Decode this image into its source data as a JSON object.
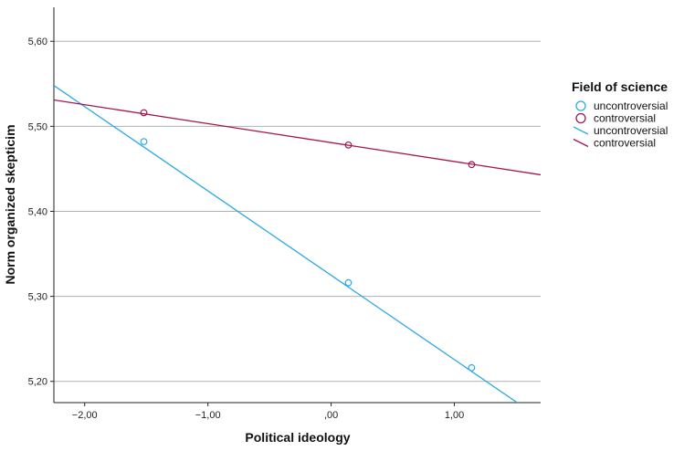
{
  "chart_data": {
    "type": "scatter",
    "xlabel": "Political ideology",
    "ylabel": "Norm organized skepticim",
    "xlim": [
      -2.25,
      1.7
    ],
    "ylim": [
      5.175,
      5.64
    ],
    "x_ticks": [
      -2.0,
      -1.0,
      0.0,
      1.0
    ],
    "x_tick_labels": [
      "−2,00",
      "−1,00",
      ",00",
      "1,00"
    ],
    "y_ticks": [
      5.2,
      5.3,
      5.4,
      5.5,
      5.6
    ],
    "y_tick_labels": [
      "5,20",
      "5,30",
      "5,40",
      "5,50",
      "5,60"
    ],
    "grid": "horizontal",
    "legend": {
      "title": "Field of science",
      "position": "right",
      "entries": [
        {
          "label": "uncontroversial",
          "kind": "marker",
          "color": "#29abe2"
        },
        {
          "label": "controversial",
          "kind": "marker",
          "color": "#a4164f"
        },
        {
          "label": "uncontroversial",
          "kind": "line",
          "color": "#29abe2"
        },
        {
          "label": "controversial",
          "kind": "line",
          "color": "#a4164f"
        }
      ]
    },
    "series": [
      {
        "name": "uncontroversial",
        "color": "#29abe2",
        "points": [
          {
            "x": -1.52,
            "y": 5.482
          },
          {
            "x": 0.14,
            "y": 5.316
          },
          {
            "x": 1.14,
            "y": 5.216
          }
        ],
        "fit_line": [
          {
            "x": -2.25,
            "y": 5.548
          },
          {
            "x": 1.51,
            "y": 5.175
          }
        ]
      },
      {
        "name": "controversial",
        "color": "#a4164f",
        "points": [
          {
            "x": -1.52,
            "y": 5.516
          },
          {
            "x": 0.14,
            "y": 5.478
          },
          {
            "x": 1.14,
            "y": 5.455
          }
        ],
        "fit_line": [
          {
            "x": -2.25,
            "y": 5.531
          },
          {
            "x": 1.7,
            "y": 5.443
          }
        ]
      }
    ]
  }
}
